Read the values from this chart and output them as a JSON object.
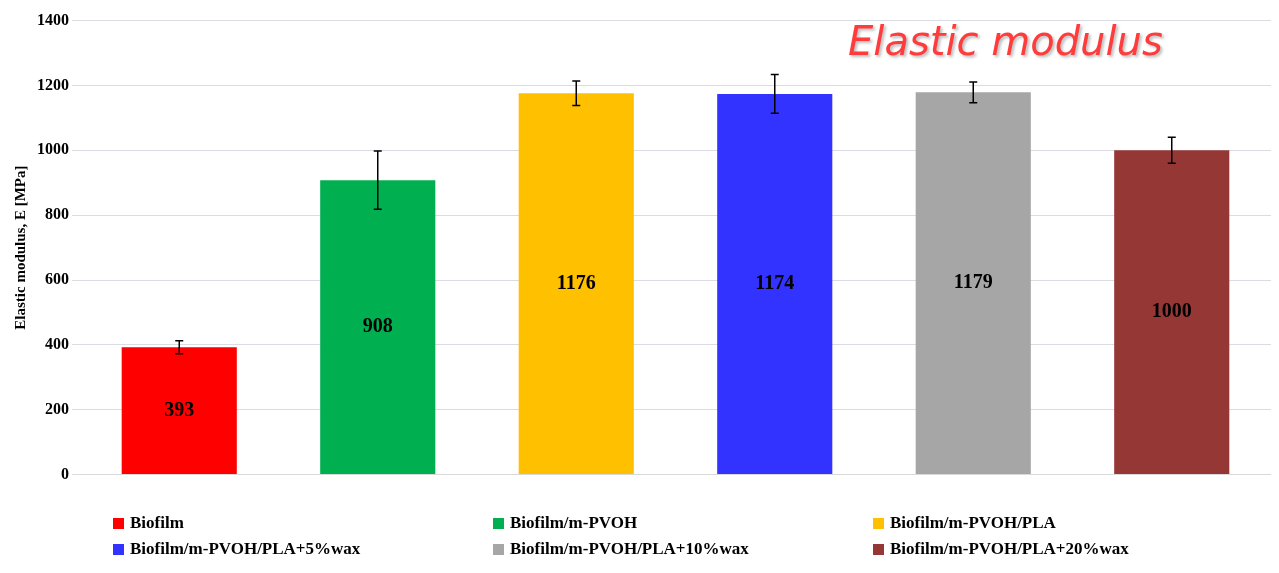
{
  "chart_data": {
    "type": "bar",
    "title": "Elastic modulus",
    "ylabel": "Elastic modulus, E [MPa]",
    "categories": [
      null,
      null,
      null,
      null,
      null,
      null
    ],
    "series": [
      {
        "name": "Biofilm",
        "color": "#ff0000",
        "values": [
          393,
          null,
          null,
          null,
          null,
          null
        ],
        "errors": [
          20,
          null,
          null,
          null,
          null,
          null
        ]
      },
      {
        "name": "Biofilm/m-PVOH",
        "color": "#00b050",
        "values": [
          null,
          908,
          null,
          null,
          null,
          null
        ],
        "errors": [
          null,
          90,
          null,
          null,
          null,
          null
        ]
      },
      {
        "name": "Biofilm/m-PVOH/PLA",
        "color": "#ffc000",
        "values": [
          null,
          null,
          1176,
          null,
          null,
          null
        ],
        "errors": [
          null,
          null,
          38,
          null,
          null,
          null
        ]
      },
      {
        "name": "Biofilm/m-PVOH/PLA+5%wax",
        "color": "#3333ff",
        "values": [
          null,
          null,
          null,
          1174,
          null,
          null
        ],
        "errors": [
          null,
          null,
          null,
          60,
          null,
          null
        ]
      },
      {
        "name": "Biofilm/m-PVOH/PLA+10%wax",
        "color": "#a6a6a6",
        "values": [
          null,
          null,
          null,
          null,
          1179,
          null
        ],
        "errors": [
          null,
          null,
          null,
          null,
          32,
          null
        ]
      },
      {
        "name": "Biofilm/m-PVOH/PLA+20%wax",
        "color": "#953735",
        "values": [
          null,
          null,
          null,
          null,
          null,
          1000
        ],
        "errors": [
          null,
          null,
          null,
          null,
          null,
          40
        ]
      }
    ],
    "ylim": [
      0,
      1400
    ],
    "yticks": [
      0,
      200,
      400,
      600,
      800,
      1000,
      1200,
      1400
    ],
    "grid": "y",
    "legend": "bottom",
    "data_labels": true
  }
}
